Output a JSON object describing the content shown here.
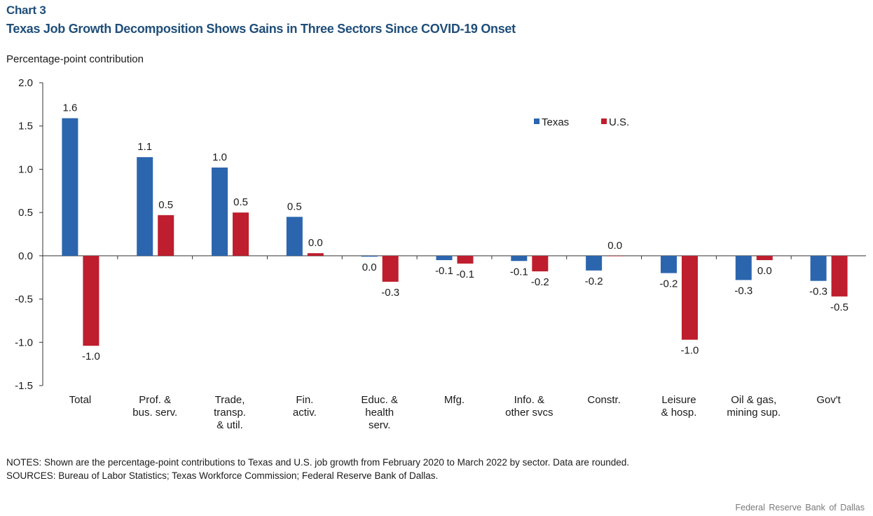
{
  "header": {
    "chart_number": "Chart 3",
    "title": "Texas Job Growth Decomposition Shows Gains in Three Sectors Since COVID-19 Onset"
  },
  "footer": {
    "notes": "NOTES: Shown are the percentage-point contributions to Texas and U.S. job growth from February 2020 to March 2022 by sector. Data are rounded.",
    "sources": "SOURCES: Bureau of Labor Statistics; Texas Workforce Commission; Federal Reserve Bank of Dallas.",
    "credit": "Federal Reserve Bank of Dallas"
  },
  "chart_data": {
    "type": "bar",
    "title": "Texas Job Growth Decomposition Shows Gains in Three Sectors Since COVID-19 Onset",
    "ylabel": "Percentage-point contribution",
    "xlabel": "",
    "ylim": [
      -1.5,
      2.0
    ],
    "yticks": [
      "2.0",
      "1.5",
      "1.0",
      "0.5",
      "0.0",
      "-0.5",
      "-1.0",
      "-1.5"
    ],
    "ytick_values": [
      2.0,
      1.5,
      1.0,
      0.5,
      0.0,
      -0.5,
      -1.0,
      -1.5
    ],
    "grid": false,
    "legend": "top-right",
    "categories": [
      [
        "Total"
      ],
      [
        "Prof. &",
        "bus. serv."
      ],
      [
        "Trade,",
        "transp.",
        "& util."
      ],
      [
        "Fin.",
        "activ."
      ],
      [
        "Educ. &",
        "health",
        "serv."
      ],
      [
        "Mfg."
      ],
      [
        "Info. &",
        "other svcs"
      ],
      [
        "Constr."
      ],
      [
        "Leisure",
        "& hosp."
      ],
      [
        "Oil & gas,",
        "mining sup."
      ],
      [
        "Gov't"
      ]
    ],
    "series": [
      {
        "name": "Texas",
        "color": "#2b65ae",
        "values": [
          1.59,
          1.14,
          1.02,
          0.45,
          -0.01,
          -0.05,
          -0.06,
          -0.17,
          -0.2,
          -0.28,
          -0.29
        ],
        "labels": [
          "1.6",
          "1.1",
          "1.0",
          "0.5",
          "0.0",
          "-0.1",
          "-0.1",
          "-0.2",
          "-0.2",
          "-0.3",
          "-0.3"
        ]
      },
      {
        "name": "U.S.",
        "color": "#be1e2d",
        "values": [
          -1.04,
          0.47,
          0.5,
          0.03,
          -0.3,
          -0.09,
          -0.18,
          0.0,
          -0.97,
          -0.05,
          -0.47
        ],
        "labels": [
          "-1.0",
          "0.5",
          "0.5",
          "0.0",
          "-0.3",
          "-0.1",
          "-0.2",
          "0.0",
          "-1.0",
          "0.0",
          "-0.5"
        ]
      }
    ]
  }
}
